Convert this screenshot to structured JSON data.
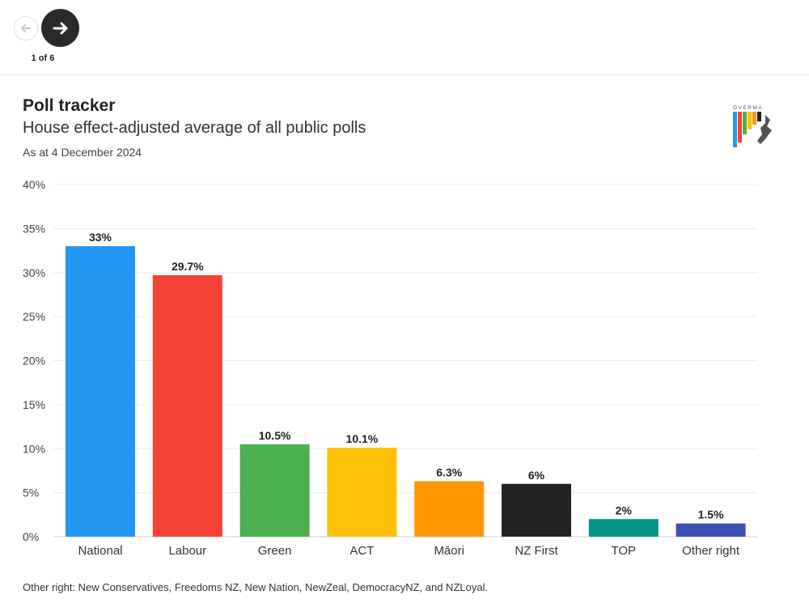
{
  "nav": {
    "counter": "1 of 6",
    "prev_icon": "arrow-left-icon",
    "next_icon": "arrow-right-icon"
  },
  "logo": {
    "text": "ÖVERMA",
    "icon": "overmap-logo-icon"
  },
  "chart_data": {
    "type": "bar",
    "title": "Poll tracker",
    "subtitle": "House effect-adjusted average of all public polls",
    "date_note": "As at 4 December 2024",
    "categories": [
      "National",
      "Labour",
      "Green",
      "ACT",
      "Māori",
      "NZ First",
      "TOP",
      "Other right"
    ],
    "values": [
      33,
      29.7,
      10.5,
      10.1,
      6.3,
      6,
      2,
      1.5
    ],
    "data_labels": [
      "33%",
      "29.7%",
      "10.5%",
      "10.1%",
      "6.3%",
      "6%",
      "2%",
      "1.5%"
    ],
    "colors": [
      "#2196f3",
      "#f44336",
      "#4caf50",
      "#ffc107",
      "#ff9800",
      "#222222",
      "#009688",
      "#3f51b5"
    ],
    "yticks": [
      0,
      5,
      10,
      15,
      20,
      25,
      30,
      35,
      40
    ],
    "ytick_labels": [
      "0%",
      "5%",
      "10%",
      "15%",
      "20%",
      "25%",
      "30%",
      "35%",
      "40%"
    ],
    "ylim": [
      0,
      40
    ],
    "grid": true,
    "legend": "none",
    "xlabel": "",
    "ylabel": ""
  },
  "footnote": "Other right: New Conservatives, Freedoms NZ, New Nation, NewZeal, DemocracyNZ, and NZLoyal."
}
